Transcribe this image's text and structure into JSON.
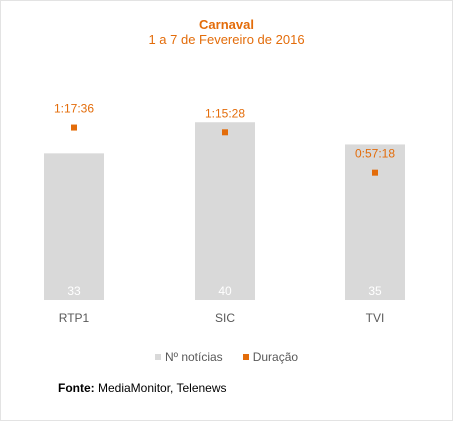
{
  "chart_data": {
    "type": "bar",
    "title": "Carnaval",
    "subtitle": "1 a 7 de Fevereiro de 2016",
    "categories": [
      "RTP1",
      "SIC",
      "TVI"
    ],
    "series": [
      {
        "name": "Nº notícias",
        "kind": "bar",
        "color": "#d9d9d9",
        "values": [
          33,
          40,
          35
        ]
      },
      {
        "name": "Duração",
        "kind": "point",
        "color": "#e36c0a",
        "values": [
          "1:17:36",
          "1:15:28",
          "0:57:18"
        ],
        "seconds": [
          4656,
          4528,
          3438
        ]
      }
    ],
    "bar_ylim": [
      0,
      45
    ],
    "duration_ylim_seconds": [
      0,
      5400
    ],
    "grid": false,
    "legend_placement": "bottom"
  },
  "source": {
    "label": "Fonte:",
    "text": "MediaMonitor, Telenews"
  }
}
